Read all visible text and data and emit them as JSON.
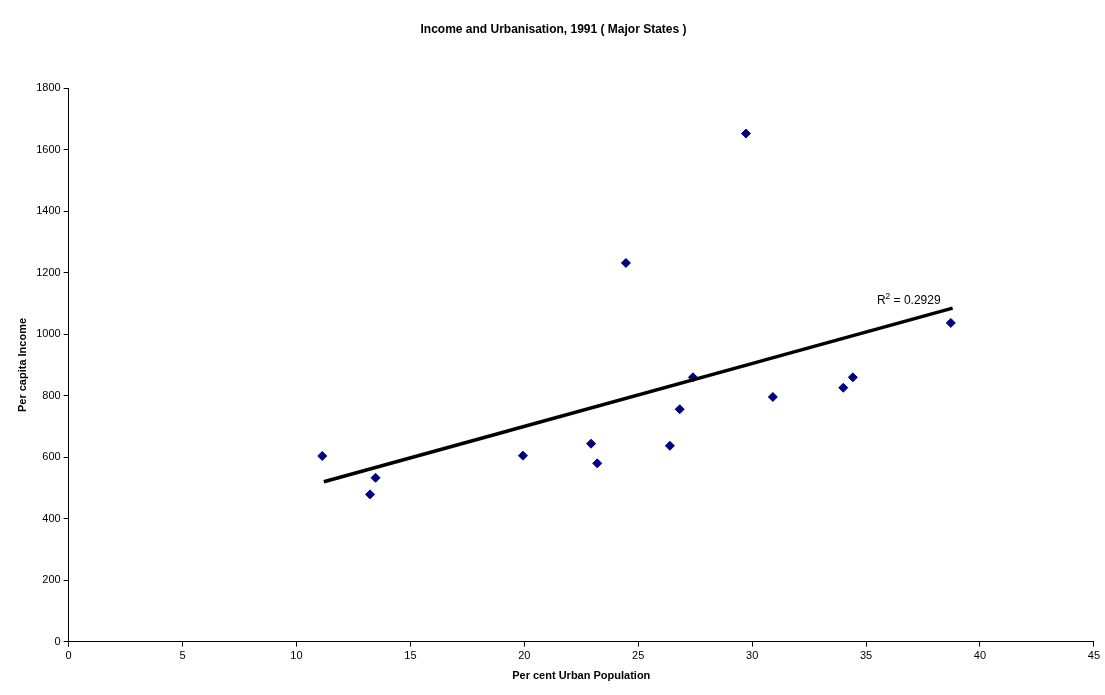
{
  "chart_data": {
    "type": "scatter",
    "title": "Income and Urbanisation, 1991 ( Major States )",
    "xlabel": "Per cent Urban Population",
    "ylabel": "Per capita Income",
    "series": [
      {
        "color": "#000080",
        "marker": "diamond",
        "x": [
          11.13,
          13.23,
          13.47,
          19.94,
          22.93,
          23.2,
          24.46,
          26.39,
          26.82,
          27.4,
          29.73,
          30.91,
          34.0,
          34.42,
          38.72
        ],
        "values": [
          604,
          479,
          533,
          605,
          644,
          580,
          1232,
          637,
          756,
          860,
          1653,
          796,
          826,
          860,
          1037
        ]
      },
      {
        "type": "line",
        "color": "#000000",
        "line_style": "solid",
        "x": [
          11.2,
          38.8
        ],
        "values": [
          520,
          1085
        ]
      }
    ],
    "annotations": [
      {
        "text": "R$^{2}$ = 0.2929",
        "x": 38.8,
        "y": 1085
      }
    ],
    "xlim": [
      0,
      45
    ],
    "xticks": [
      0,
      5,
      10,
      15,
      20,
      25,
      30,
      35,
      40,
      45
    ],
    "ylim": [
      0,
      1800
    ],
    "yticks": [
      0,
      200,
      400,
      600,
      800,
      1000,
      1200,
      1400,
      1600,
      1800
    ],
    "grid": false,
    "legend": false
  }
}
